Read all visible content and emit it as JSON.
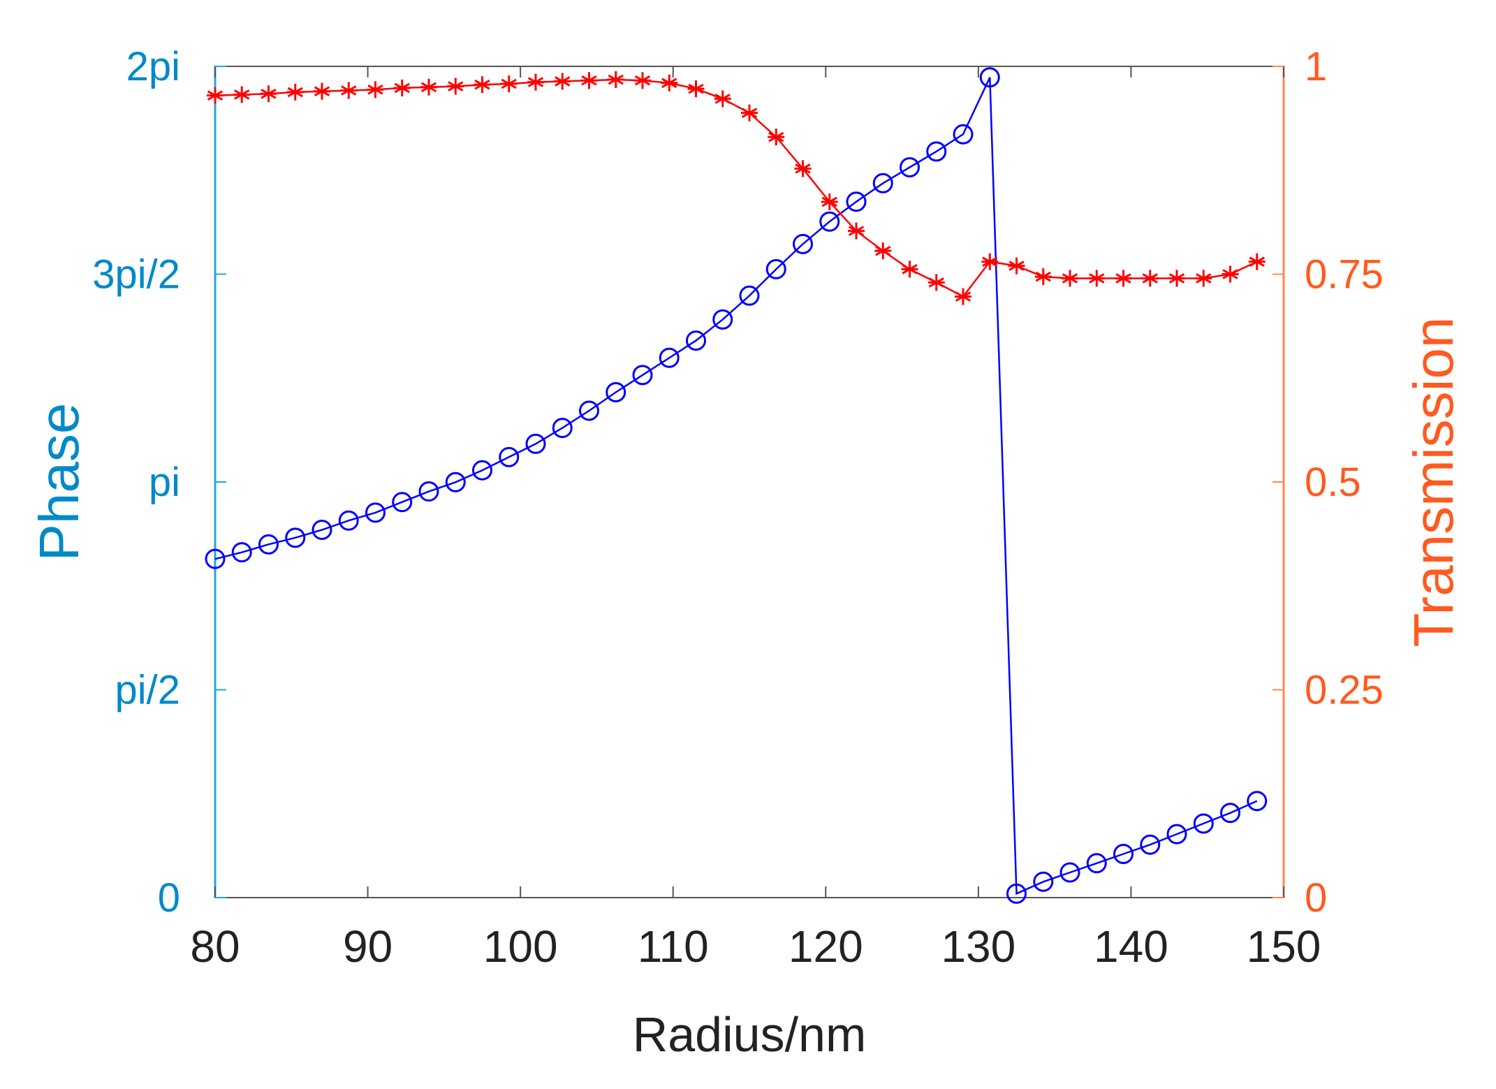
{
  "chart_data": {
    "type": "line",
    "title": "",
    "xlabel": "Radius/nm",
    "ylabel_left": "Phase",
    "ylabel_right": "Transmission",
    "xlim": [
      80,
      150
    ],
    "ylim_left": [
      0,
      6.283185
    ],
    "ylim_right": [
      0,
      1
    ],
    "x_ticks": [
      80,
      90,
      100,
      110,
      120,
      130,
      140,
      150
    ],
    "x_tick_labels": [
      "80",
      "90",
      "100",
      "110",
      "120",
      "130",
      "140",
      "150"
    ],
    "left_ticks": [
      0,
      1.570796,
      3.141593,
      4.712389,
      6.283185
    ],
    "left_tick_labels": [
      "0",
      "pi/2",
      "pi",
      "3pi/2",
      "2pi"
    ],
    "right_ticks": [
      0,
      0.25,
      0.5,
      0.75,
      1
    ],
    "right_tick_labels": [
      "0",
      "0.25",
      "0.5",
      "0.75",
      "1"
    ],
    "colors": {
      "left_axis": "#0089c9",
      "left_axis_line": "#22a7e0",
      "right_axis": "#ff5a1f",
      "right_axis_line": "#ff8855",
      "phase_series": "#0000ff",
      "transmission_series": "#ff0000",
      "frame": "#555555",
      "x_tick_text": "#222222"
    },
    "series": [
      {
        "name": "Phase",
        "axis": "left",
        "marker": "circle",
        "x": [
          80,
          81.75,
          83.5,
          85.25,
          87,
          88.75,
          90.5,
          92.25,
          94,
          95.75,
          97.5,
          99.25,
          101,
          102.75,
          104.5,
          106.25,
          108,
          109.75,
          111.5,
          113.25,
          115,
          116.75,
          118.5,
          120.25,
          122,
          123.75,
          125.5,
          127.25,
          129,
          130.75,
          132.5,
          134.25,
          136,
          137.75,
          139.5,
          141.25,
          143,
          144.75,
          146.5,
          148.25
        ],
        "values": [
          2.56,
          2.61,
          2.67,
          2.72,
          2.78,
          2.85,
          2.91,
          2.99,
          3.07,
          3.14,
          3.23,
          3.33,
          3.43,
          3.55,
          3.68,
          3.82,
          3.95,
          4.08,
          4.21,
          4.37,
          4.55,
          4.75,
          4.94,
          5.11,
          5.26,
          5.4,
          5.52,
          5.64,
          5.77,
          6.2,
          0.03,
          0.12,
          0.19,
          0.26,
          0.33,
          0.4,
          0.48,
          0.56,
          0.64,
          0.73
        ]
      },
      {
        "name": "Transmission",
        "axis": "right",
        "marker": "asterisk",
        "x": [
          80,
          81.75,
          83.5,
          85.25,
          87,
          88.75,
          90.5,
          92.25,
          94,
          95.75,
          97.5,
          99.25,
          101,
          102.75,
          104.5,
          106.25,
          108,
          109.75,
          111.5,
          113.25,
          115,
          116.75,
          118.5,
          120.25,
          122,
          123.75,
          125.5,
          127.25,
          129,
          130.75,
          132.5,
          134.25,
          136,
          137.75,
          139.5,
          141.25,
          143,
          144.75,
          146.5,
          148.25
        ],
        "values": [
          0.965,
          0.966,
          0.967,
          0.969,
          0.97,
          0.971,
          0.972,
          0.974,
          0.975,
          0.976,
          0.978,
          0.979,
          0.981,
          0.982,
          0.983,
          0.984,
          0.983,
          0.98,
          0.973,
          0.961,
          0.944,
          0.915,
          0.877,
          0.837,
          0.802,
          0.778,
          0.756,
          0.74,
          0.723,
          0.765,
          0.76,
          0.747,
          0.745,
          0.745,
          0.745,
          0.745,
          0.745,
          0.745,
          0.75,
          0.765
        ]
      }
    ]
  }
}
